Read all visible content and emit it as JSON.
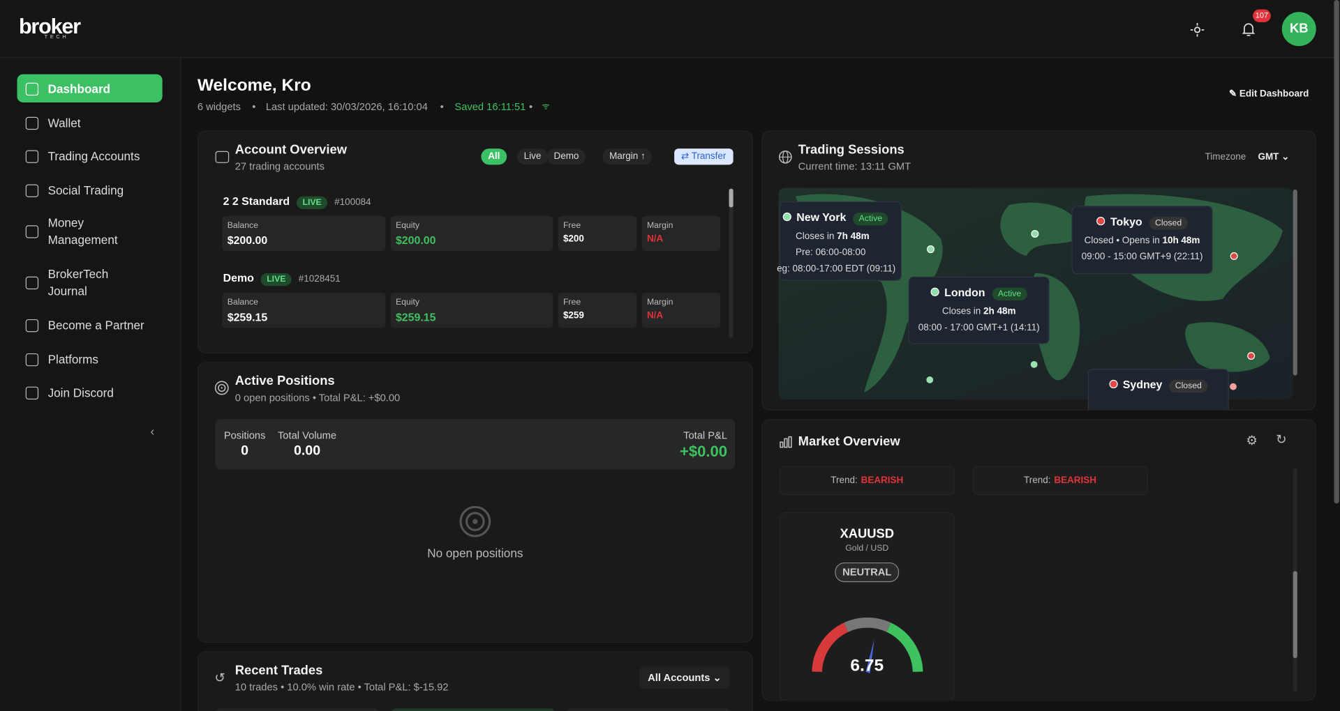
{
  "header": {
    "logo": "broker",
    "logo_sub": "TECH",
    "notification_count": "107",
    "avatar": "KB"
  },
  "sidebar": {
    "items": [
      "Dashboard",
      "Wallet",
      "Trading Accounts",
      "Social Trading",
      "Money Management",
      "BrokerTech Journal",
      "Become a Partner",
      "Platforms",
      "Join Discord"
    ]
  },
  "page": {
    "title": "Welcome, Kro",
    "widgets": "6 widgets",
    "last_updated": "Last updated: 30/03/2026, 16:10:04",
    "saved": "Saved 16:11:51",
    "edit": "Edit Dashboard"
  },
  "account_overview": {
    "title": "Account Overview",
    "subtitle": "27 trading accounts",
    "filters": [
      "All",
      "Live",
      "Demo",
      "Margin ↑"
    ],
    "transfer": "Transfer",
    "accounts": [
      {
        "name": "2 2 Standard",
        "badge": "LIVE",
        "id": "#100084",
        "fields": [
          {
            "label": "Balance",
            "value": "$200.00"
          },
          {
            "label": "Equity",
            "value": "$200.00"
          },
          {
            "label": "Free",
            "value": "$200"
          },
          {
            "label": "Margin",
            "value": "N/A"
          }
        ]
      },
      {
        "name": "Demo",
        "badge": "LIVE",
        "id": "#1028451",
        "fields": [
          {
            "label": "Balance",
            "value": "$259.15"
          },
          {
            "label": "Equity",
            "value": "$259.15"
          },
          {
            "label": "Free",
            "value": "$259"
          },
          {
            "label": "Margin",
            "value": "N/A"
          }
        ]
      }
    ]
  },
  "trading_sessions": {
    "title": "Trading Sessions",
    "subtitle": "Current time: 13:11 GMT",
    "timezone_label": "Timezone",
    "timezone": "GMT",
    "sessions": [
      {
        "city": "New York",
        "status": "Active",
        "lines": [
          {
            "text": "Closes in ",
            "bold": "7h 48m"
          },
          {
            "text": "Pre: 06:00-08:00"
          },
          {
            "text": "eg: 08:00-17:00 EDT (09:11)"
          }
        ]
      },
      {
        "city": "Tokyo",
        "status": "Closed",
        "lines": [
          {
            "text": "Closed • Opens in ",
            "bold": "10h 48m"
          },
          {
            "text": "09:00 - 15:00 GMT+9 (22:11)"
          }
        ]
      },
      {
        "city": "London",
        "status": "Active",
        "lines": [
          {
            "text": "Closes in ",
            "bold": "2h 48m"
          },
          {
            "text": "08:00 - 17:00 GMT+1 (14:11)"
          }
        ]
      },
      {
        "city": "Sydney",
        "status": "Closed",
        "lines": []
      }
    ]
  },
  "active_positions": {
    "title": "Active Positions",
    "subtitle": "0 open positions • Total P&L: +$0.00",
    "stats": [
      {
        "label": "Positions",
        "value": "0"
      },
      {
        "label": "Total Volume",
        "value": "0.00"
      }
    ],
    "total_pnl_label": "Total P&L",
    "total_pnl": "+$0.00",
    "empty": "No open positions"
  },
  "market_overview": {
    "title": "Market Overview",
    "trends": [
      {
        "label": "Trend:",
        "value": "BEARISH"
      },
      {
        "label": "Trend:",
        "value": "BEARISH"
      }
    ],
    "symbol": "XAUUSD",
    "symbol_name": "Gold / USD",
    "sentiment": "NEUTRAL",
    "gauge_value": "6.75"
  },
  "recent_trades": {
    "title": "Recent Trades",
    "subtitle": "10 trades • 10.0% win rate • Total P&L: $-15.92",
    "filter": "All Accounts"
  }
}
